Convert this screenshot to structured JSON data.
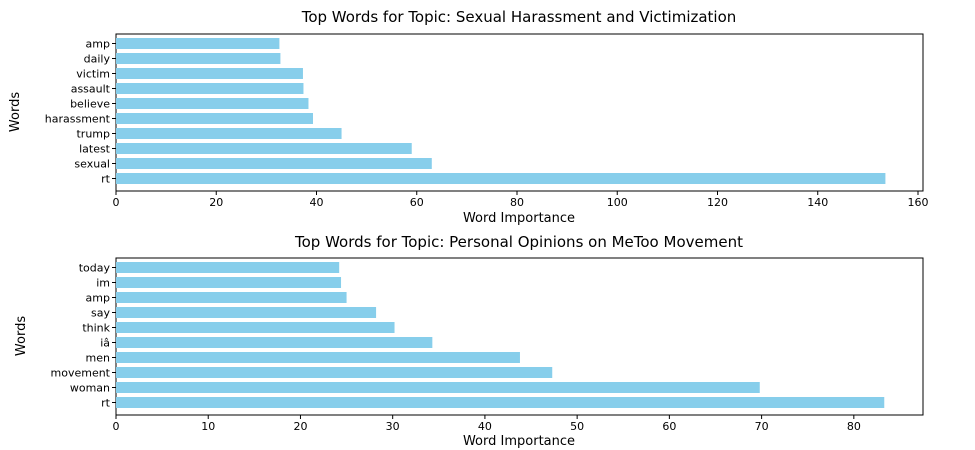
{
  "chart_data": [
    {
      "type": "bar",
      "orientation": "horizontal",
      "title": "Top Words for Topic: Sexual Harassment and Victimization",
      "xlabel": "Word Importance",
      "ylabel": "Words",
      "categories": [
        "rt",
        "sexual",
        "latest",
        "trump",
        "harassment",
        "believe",
        "assault",
        "victim",
        "daily",
        "amp"
      ],
      "values": [
        153.5,
        63,
        59,
        45,
        39.3,
        38.4,
        37.4,
        37.3,
        32.8,
        32.6
      ],
      "xlim": [
        0,
        161
      ],
      "xticks": [
        0,
        20,
        40,
        60,
        80,
        100,
        120,
        140,
        160
      ],
      "bar_color": "#87ceeb",
      "grid": false
    },
    {
      "type": "bar",
      "orientation": "horizontal",
      "title": "Top Words for Topic: Personal Opinions on MeToo Movement",
      "xlabel": "Word Importance",
      "ylabel": "Words",
      "categories": [
        "rt",
        "woman",
        "movement",
        "men",
        "iâ",
        "think",
        "say",
        "amp",
        "im",
        "today"
      ],
      "values": [
        83.3,
        69.8,
        47.3,
        43.8,
        34.3,
        30.2,
        28.2,
        25,
        24.4,
        24.2
      ],
      "xlim": [
        0,
        87.5
      ],
      "xticks": [
        0,
        10,
        20,
        30,
        40,
        50,
        60,
        70,
        80
      ],
      "bar_color": "#87ceeb",
      "grid": false
    }
  ]
}
